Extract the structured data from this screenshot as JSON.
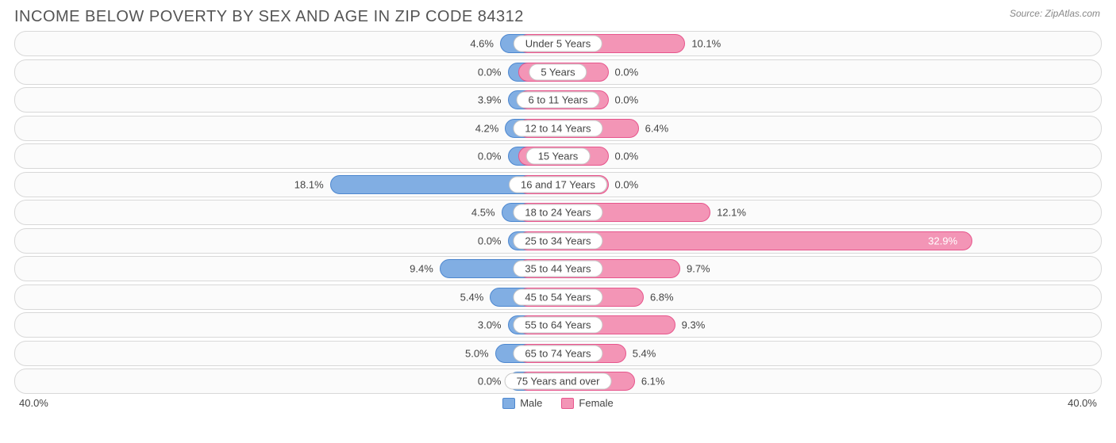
{
  "title": "INCOME BELOW POVERTY BY SEX AND AGE IN ZIP CODE 84312",
  "source": "Source: ZipAtlas.com",
  "axis_max": 40.0,
  "axis_max_label": "40.0%",
  "zero_label": "0.0%",
  "min_bar_display": 4.0,
  "legend": {
    "male": "Male",
    "female": "Female"
  },
  "colors": {
    "male_fill": "#81aee3",
    "male_stroke": "#4d87cf",
    "female_fill": "#f395b6",
    "female_stroke": "#e7558c",
    "row_border": "#d8d8d8",
    "row_bg": "#fbfbfb",
    "pill_bg": "#ffffff",
    "pill_border": "#c8c8c8",
    "text": "#444444",
    "title": "#555555",
    "source_text": "#888888",
    "background": "#ffffff"
  },
  "rows": [
    {
      "label": "Under 5 Years",
      "male": 4.6,
      "female": 10.1,
      "male_label": "4.6%",
      "female_label": "10.1%"
    },
    {
      "label": "5 Years",
      "male": 0.0,
      "female": 0.0,
      "male_label": "0.0%",
      "female_label": "0.0%"
    },
    {
      "label": "6 to 11 Years",
      "male": 3.9,
      "female": 0.0,
      "male_label": "3.9%",
      "female_label": "0.0%"
    },
    {
      "label": "12 to 14 Years",
      "male": 4.2,
      "female": 6.4,
      "male_label": "4.2%",
      "female_label": "6.4%"
    },
    {
      "label": "15 Years",
      "male": 0.0,
      "female": 0.0,
      "male_label": "0.0%",
      "female_label": "0.0%"
    },
    {
      "label": "16 and 17 Years",
      "male": 18.1,
      "female": 0.0,
      "male_label": "18.1%",
      "female_label": "0.0%"
    },
    {
      "label": "18 to 24 Years",
      "male": 4.5,
      "female": 12.1,
      "male_label": "4.5%",
      "female_label": "12.1%"
    },
    {
      "label": "25 to 34 Years",
      "male": 0.0,
      "female": 32.9,
      "male_label": "0.0%",
      "female_label": "32.9%"
    },
    {
      "label": "35 to 44 Years",
      "male": 9.4,
      "female": 9.7,
      "male_label": "9.4%",
      "female_label": "9.7%"
    },
    {
      "label": "45 to 54 Years",
      "male": 5.4,
      "female": 6.8,
      "male_label": "5.4%",
      "female_label": "6.8%"
    },
    {
      "label": "55 to 64 Years",
      "male": 3.0,
      "female": 9.3,
      "male_label": "3.0%",
      "female_label": "9.3%"
    },
    {
      "label": "65 to 74 Years",
      "male": 5.0,
      "female": 5.4,
      "male_label": "5.0%",
      "female_label": "5.4%"
    },
    {
      "label": "75 Years and over",
      "male": 0.0,
      "female": 6.1,
      "male_label": "0.0%",
      "female_label": "6.1%"
    }
  ]
}
